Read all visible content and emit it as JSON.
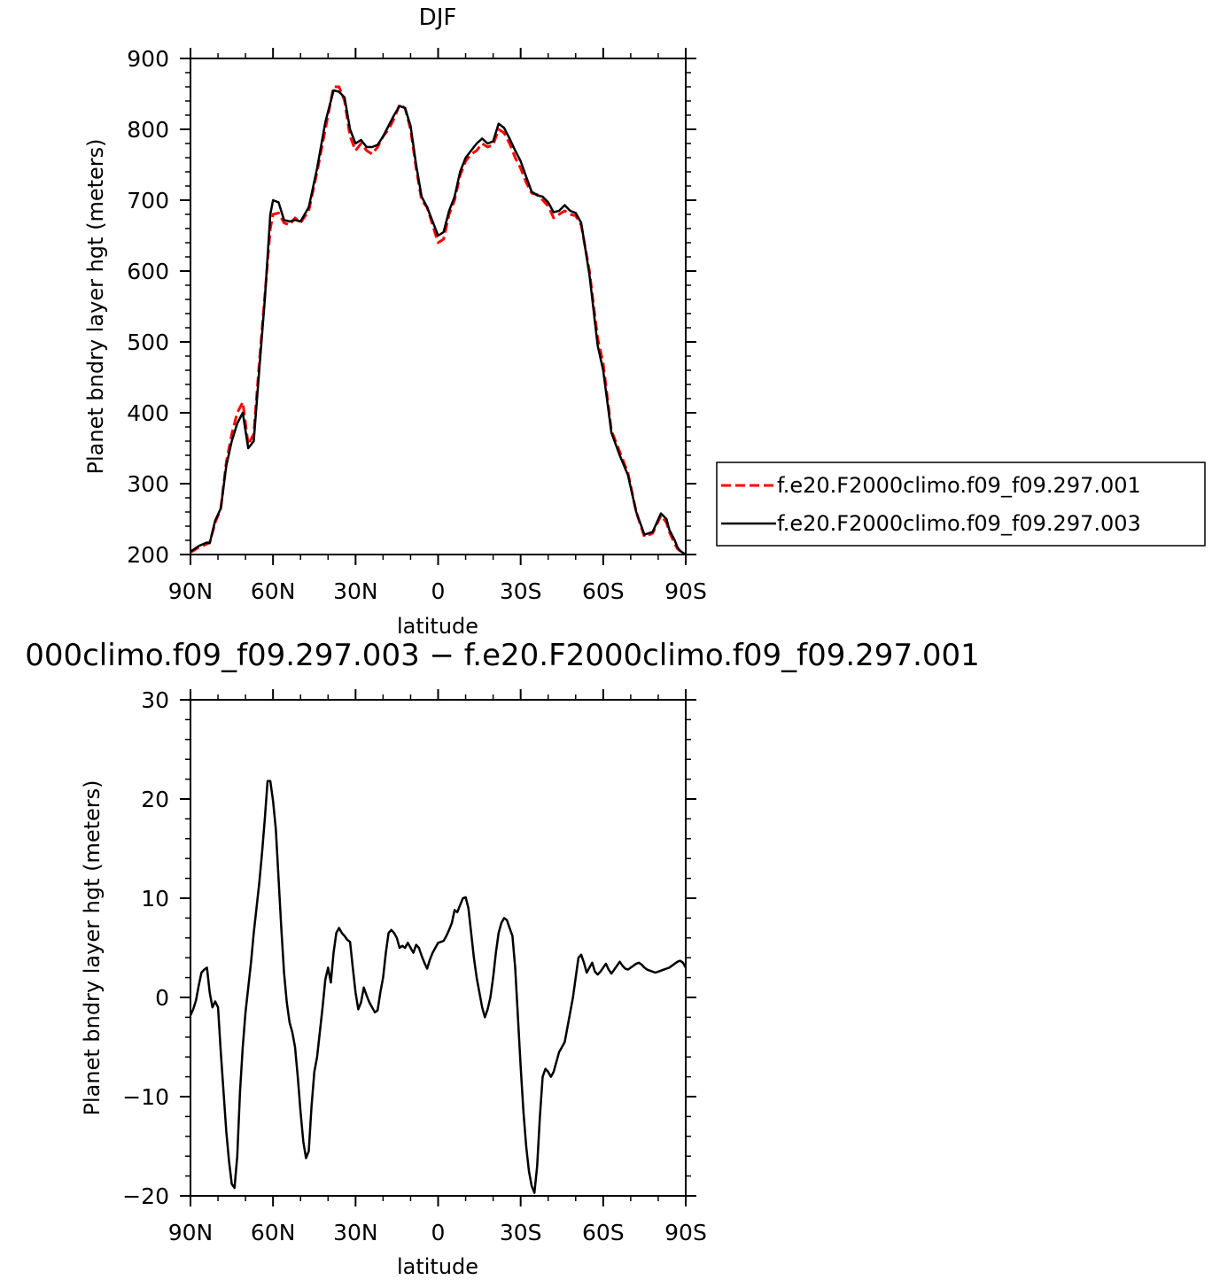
{
  "chart_data": [
    {
      "type": "line",
      "title": "DJF",
      "xlabel": "latitude",
      "ylabel": "Planet bndry layer hgt (meters)",
      "xlim": [
        90,
        -90
      ],
      "ylim": [
        200,
        900
      ],
      "xticks": [
        90,
        60,
        30,
        0,
        -30,
        -60,
        -90
      ],
      "xtick_labels": [
        "90N",
        "60N",
        "30N",
        "0",
        "30S",
        "60S",
        "90S"
      ],
      "yticks": [
        200,
        300,
        400,
        500,
        600,
        700,
        800,
        900
      ],
      "ytick_labels": [
        "200",
        "300",
        "400",
        "500",
        "600",
        "700",
        "800",
        "900"
      ],
      "grid": false,
      "legend_position": "right",
      "series": [
        {
          "name": "f.e20.F2000climo.f09_f09.297.001",
          "color": "#ff0000",
          "dash": "dashed",
          "x": [
            90,
            87,
            84,
            83,
            81,
            79,
            77,
            75,
            73,
            71,
            69,
            67,
            65,
            63,
            61,
            60,
            58,
            56,
            54,
            52,
            50,
            47,
            44,
            41,
            38,
            36,
            34,
            32,
            30,
            28,
            26,
            24,
            22,
            20,
            18,
            16,
            14,
            12,
            10,
            8,
            6,
            4,
            2,
            0,
            -2,
            -4,
            -6,
            -8,
            -10,
            -12,
            -14,
            -16,
            -18,
            -20,
            -22,
            -24,
            -26,
            -28,
            -30,
            -32,
            -34,
            -36,
            -38,
            -40,
            -42,
            -44,
            -46,
            -48,
            -50,
            -52,
            -55,
            -58,
            -60,
            -63,
            -66,
            -69,
            -72,
            -75,
            -78,
            -81,
            -83,
            -84,
            -86,
            -87,
            -88,
            -90
          ],
          "y": [
            203,
            210,
            215,
            217,
            245,
            265,
            330,
            370,
            400,
            415,
            355,
            370,
            470,
            565,
            660,
            680,
            682,
            668,
            665,
            675,
            668,
            685,
            740,
            800,
            860,
            860,
            840,
            790,
            770,
            780,
            770,
            765,
            775,
            790,
            800,
            815,
            835,
            830,
            800,
            745,
            700,
            690,
            665,
            640,
            645,
            680,
            700,
            735,
            755,
            765,
            770,
            780,
            775,
            778,
            800,
            795,
            780,
            760,
            745,
            725,
            710,
            708,
            700,
            692,
            675,
            680,
            685,
            680,
            678,
            665,
            600,
            505,
            470,
            375,
            345,
            315,
            260,
            225,
            230,
            255,
            245,
            232,
            215,
            208,
            205,
            203
          ]
        },
        {
          "name": "f.e20.F2000climo.f09_f09.297.003",
          "color": "#000000",
          "dash": "solid",
          "x": [
            90,
            87,
            84,
            83,
            81,
            79,
            77,
            75,
            73,
            71,
            69,
            67,
            65,
            63,
            61,
            60,
            58,
            56,
            54,
            52,
            50,
            47,
            44,
            41,
            38,
            36,
            34,
            32,
            30,
            28,
            26,
            24,
            22,
            20,
            18,
            16,
            14,
            12,
            10,
            8,
            6,
            4,
            2,
            0,
            -2,
            -4,
            -6,
            -8,
            -10,
            -12,
            -14,
            -16,
            -18,
            -20,
            -22,
            -24,
            -26,
            -28,
            -30,
            -32,
            -34,
            -36,
            -38,
            -40,
            -42,
            -44,
            -46,
            -48,
            -50,
            -52,
            -55,
            -58,
            -60,
            -63,
            -66,
            -69,
            -72,
            -75,
            -78,
            -81,
            -83,
            -84,
            -86,
            -87,
            -88,
            -90
          ],
          "y": [
            204,
            212,
            217,
            216,
            248,
            265,
            325,
            360,
            385,
            400,
            350,
            360,
            460,
            560,
            680,
            700,
            697,
            672,
            670,
            672,
            670,
            690,
            745,
            810,
            855,
            853,
            845,
            800,
            780,
            785,
            775,
            775,
            778,
            790,
            805,
            820,
            833,
            830,
            805,
            750,
            705,
            690,
            670,
            650,
            655,
            685,
            705,
            740,
            760,
            770,
            780,
            787,
            780,
            783,
            808,
            802,
            787,
            770,
            755,
            733,
            712,
            707,
            705,
            697,
            683,
            685,
            693,
            685,
            682,
            668,
            595,
            495,
            460,
            372,
            340,
            312,
            260,
            228,
            232,
            258,
            250,
            235,
            220,
            210,
            205,
            200
          ]
        }
      ]
    },
    {
      "type": "line",
      "title": "000climo.f09_f09.297.003 − f.e20.F2000climo.f09_f09.297.001",
      "xlabel": "latitude",
      "ylabel": "Planet bndry layer hgt (meters)",
      "xlim": [
        90,
        -90
      ],
      "ylim": [
        -20,
        30
      ],
      "xticks": [
        90,
        60,
        30,
        0,
        -30,
        -60,
        -90
      ],
      "xtick_labels": [
        "90N",
        "60N",
        "30N",
        "0",
        "30S",
        "60S",
        "90S"
      ],
      "yticks": [
        -20,
        -10,
        0,
        10,
        20,
        30
      ],
      "ytick_labels": [
        "−20",
        "−10",
        "0",
        "10",
        "20",
        "30"
      ],
      "grid": false,
      "series": [
        {
          "color": "#000000",
          "dash": "solid",
          "x": [
            90,
            89,
            88,
            87,
            86,
            85,
            84,
            83,
            82,
            81,
            80,
            79,
            78,
            77,
            76,
            75,
            74,
            73,
            72,
            71,
            70,
            69,
            68,
            67,
            66,
            65,
            64,
            63,
            62,
            61,
            60,
            59,
            58,
            57,
            56,
            55,
            54,
            53,
            52,
            51,
            50,
            49,
            48,
            47,
            46,
            45,
            44,
            43,
            42,
            41,
            40,
            39,
            38,
            37,
            36,
            35,
            34,
            33,
            32,
            31,
            30,
            29,
            28,
            27,
            26,
            25,
            24,
            23,
            22,
            21,
            20,
            19,
            18,
            17,
            16,
            15,
            14,
            13,
            12,
            11,
            10,
            9,
            8,
            7,
            6,
            5,
            4,
            3,
            2,
            1,
            0,
            -1,
            -2,
            -3,
            -4,
            -5,
            -6,
            -7,
            -8,
            -9,
            -10,
            -11,
            -12,
            -13,
            -14,
            -15,
            -16,
            -17,
            -18,
            -19,
            -20,
            -21,
            -22,
            -23,
            -24,
            -25,
            -26,
            -27,
            -28,
            -29,
            -30,
            -31,
            -32,
            -33,
            -34,
            -35,
            -36,
            -37,
            -38,
            -39,
            -40,
            -41,
            -42,
            -43,
            -44,
            -45,
            -46,
            -47,
            -48,
            -49,
            -50,
            -51,
            -52,
            -53,
            -54,
            -55,
            -56,
            -57,
            -58,
            -59,
            -60,
            -61,
            -62,
            -63,
            -64,
            -65,
            -66,
            -67,
            -68,
            -69,
            -70,
            -71,
            -72,
            -73,
            -74,
            -75,
            -76,
            -77,
            -78,
            -79,
            -80,
            -81,
            -82,
            -83,
            -84,
            -85,
            -86,
            -87,
            -88,
            -89,
            -90
          ],
          "y": [
            -1.8,
            -1.2,
            -0.3,
            1.2,
            2.5,
            2.8,
            3.0,
            0.5,
            -1.0,
            -0.4,
            -1.0,
            -5.5,
            -9.5,
            -13.5,
            -16.5,
            -18.8,
            -19.2,
            -16.0,
            -9.5,
            -5.0,
            -1.5,
            1.0,
            3.5,
            6.5,
            9.0,
            11.5,
            14.5,
            18.0,
            21.8,
            21.8,
            19.8,
            17.0,
            12.0,
            7.0,
            2.5,
            -0.5,
            -2.5,
            -3.5,
            -5.0,
            -8.0,
            -11.5,
            -14.5,
            -16.2,
            -15.5,
            -11.0,
            -7.5,
            -6.0,
            -3.5,
            -1.0,
            1.8,
            3.0,
            1.5,
            4.5,
            6.5,
            7.0,
            6.5,
            6.2,
            5.8,
            5.6,
            3.0,
            0.5,
            -1.2,
            -0.5,
            1.0,
            0.2,
            -0.5,
            -1.0,
            -1.5,
            -1.3,
            0.5,
            2.0,
            4.5,
            6.5,
            6.8,
            6.5,
            6.0,
            5.0,
            5.2,
            5.0,
            5.5,
            5.0,
            4.5,
            5.3,
            5.0,
            4.2,
            3.5,
            2.9,
            3.8,
            4.5,
            5.0,
            5.5,
            5.6,
            5.7,
            6.2,
            6.8,
            7.5,
            8.8,
            8.6,
            9.3,
            10.0,
            10.1,
            9.0,
            6.5,
            4.0,
            2.0,
            0.5,
            -1.0,
            -2.0,
            -1.2,
            0.0,
            2.0,
            4.5,
            6.5,
            7.5,
            8.0,
            7.8,
            7.0,
            6.2,
            3.0,
            -2.0,
            -7.0,
            -11.5,
            -15.0,
            -17.5,
            -19.0,
            -19.7,
            -17.0,
            -12.0,
            -8.0,
            -7.2,
            -7.5,
            -8.0,
            -7.5,
            -6.5,
            -5.5,
            -5.0,
            -4.5,
            -3.0,
            -1.5,
            0.0,
            2.0,
            4.0,
            4.3,
            3.5,
            2.5,
            3.0,
            3.5,
            2.6,
            2.3,
            2.6,
            3.0,
            3.4,
            2.8,
            2.4,
            2.8,
            3.2,
            3.6,
            3.2,
            2.9,
            2.8,
            3.0,
            3.2,
            3.4,
            3.5,
            3.3,
            3.0,
            2.8,
            2.7,
            2.6,
            2.5,
            2.6,
            2.7,
            2.8,
            2.9,
            3.0,
            3.2,
            3.4,
            3.6,
            3.7,
            3.5,
            3.0
          ]
        }
      ]
    }
  ]
}
